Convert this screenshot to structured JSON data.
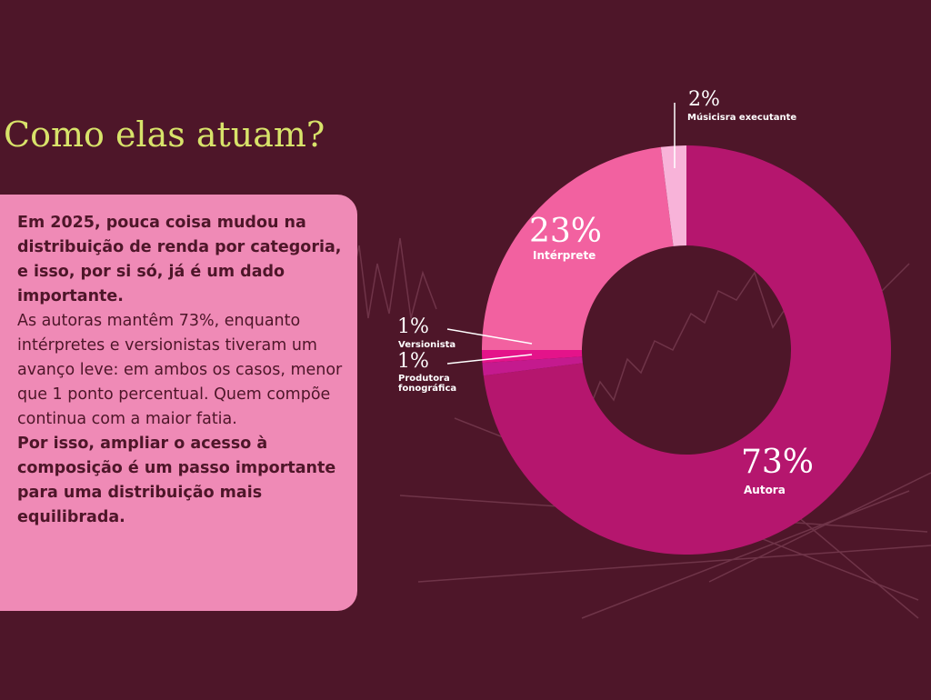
{
  "chart_data": {
    "type": "donut",
    "title": "Como elas atuam?",
    "categories": [
      "Autora",
      "Produtora fonográfica",
      "Versionista",
      "Intérprete",
      "Músicisra executante"
    ],
    "values": [
      73,
      1,
      1,
      23,
      2
    ],
    "value_labels": [
      "73%",
      "1%",
      "1%",
      "23%",
      "2%"
    ],
    "colors": [
      "#b5166e",
      "#c41a8e",
      "#e4138a",
      "#f261a0",
      "#f8b3d9"
    ]
  },
  "text": {
    "intro": "Em 2025, pouca coisa mudou na distribuição de renda por categoria, e isso, por si só, já é um dado importante.",
    "body": "As autoras mantêm 73%, enquanto intérpretes e versionistas tiveram um avanço leve: em ambos os casos, menor que 1 ponto percentual. Quem compõe continua com a maior fatia.",
    "conclusion": "Por isso, ampliar o acesso à composição é um passo importante para uma distribuição mais equilibrada."
  }
}
